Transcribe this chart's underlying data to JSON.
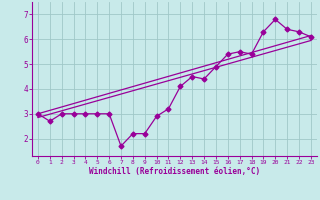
{
  "x": [
    0,
    1,
    2,
    3,
    4,
    5,
    6,
    7,
    8,
    9,
    10,
    11,
    12,
    13,
    14,
    15,
    16,
    17,
    18,
    19,
    20,
    21,
    22,
    23
  ],
  "y_data": [
    3.0,
    2.7,
    3.0,
    3.0,
    3.0,
    3.0,
    3.0,
    1.7,
    2.2,
    2.2,
    2.9,
    3.2,
    4.1,
    4.5,
    4.4,
    4.9,
    5.4,
    5.5,
    5.4,
    6.3,
    6.8,
    6.4,
    6.3,
    6.1
  ],
  "line_color": "#990099",
  "bg_color": "#c8eaea",
  "grid_color": "#a0c8c8",
  "xlabel": "Windchill (Refroidissement éolien,°C)",
  "xlim": [
    -0.5,
    23.5
  ],
  "ylim": [
    1.3,
    7.5
  ],
  "yticks": [
    2,
    3,
    4,
    5,
    6,
    7
  ],
  "xticks": [
    0,
    1,
    2,
    3,
    4,
    5,
    6,
    7,
    8,
    9,
    10,
    11,
    12,
    13,
    14,
    15,
    16,
    17,
    18,
    19,
    20,
    21,
    22,
    23
  ],
  "line1_x": [
    0,
    23
  ],
  "line1_y": [
    3.0,
    6.15
  ],
  "line2_x": [
    0,
    23
  ],
  "line2_y": [
    2.85,
    5.95
  ]
}
